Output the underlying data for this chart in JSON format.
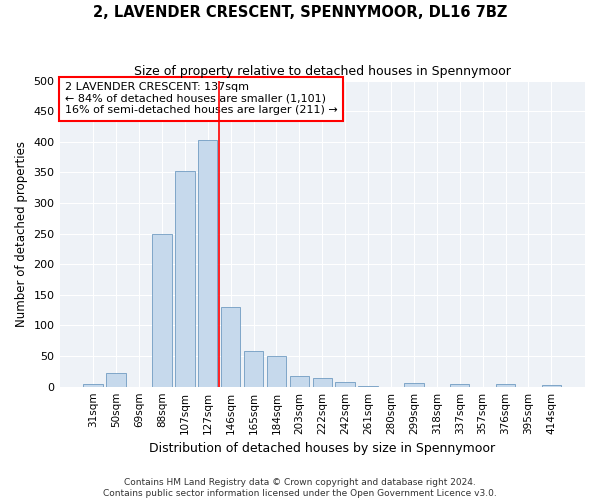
{
  "title": "2, LAVENDER CRESCENT, SPENNYMOOR, DL16 7BZ",
  "subtitle": "Size of property relative to detached houses in Spennymoor",
  "xlabel": "Distribution of detached houses by size in Spennymoor",
  "ylabel": "Number of detached properties",
  "bar_color": "#c6d9ec",
  "bar_edge_color": "#5b8db8",
  "categories": [
    "31sqm",
    "50sqm",
    "69sqm",
    "88sqm",
    "107sqm",
    "127sqm",
    "146sqm",
    "165sqm",
    "184sqm",
    "203sqm",
    "222sqm",
    "242sqm",
    "261sqm",
    "280sqm",
    "299sqm",
    "318sqm",
    "337sqm",
    "357sqm",
    "376sqm",
    "395sqm",
    "414sqm"
  ],
  "values": [
    5,
    22,
    0,
    250,
    353,
    403,
    130,
    58,
    50,
    18,
    14,
    7,
    1,
    0,
    6,
    0,
    5,
    0,
    4,
    0,
    2
  ],
  "ref_line_x": 5.5,
  "annotation_line1": "2 LAVENDER CRESCENT: 137sqm",
  "annotation_line2": "← 84% of detached houses are smaller (1,101)",
  "annotation_line3": "16% of semi-detached houses are larger (211) →",
  "ylim": [
    0,
    500
  ],
  "yticks": [
    0,
    50,
    100,
    150,
    200,
    250,
    300,
    350,
    400,
    450,
    500
  ],
  "footer_line1": "Contains HM Land Registry data © Crown copyright and database right 2024.",
  "footer_line2": "Contains public sector information licensed under the Open Government Licence v3.0.",
  "bg_color": "#eef2f7",
  "grid_color": "#ffffff",
  "fig_bg": "#ffffff"
}
